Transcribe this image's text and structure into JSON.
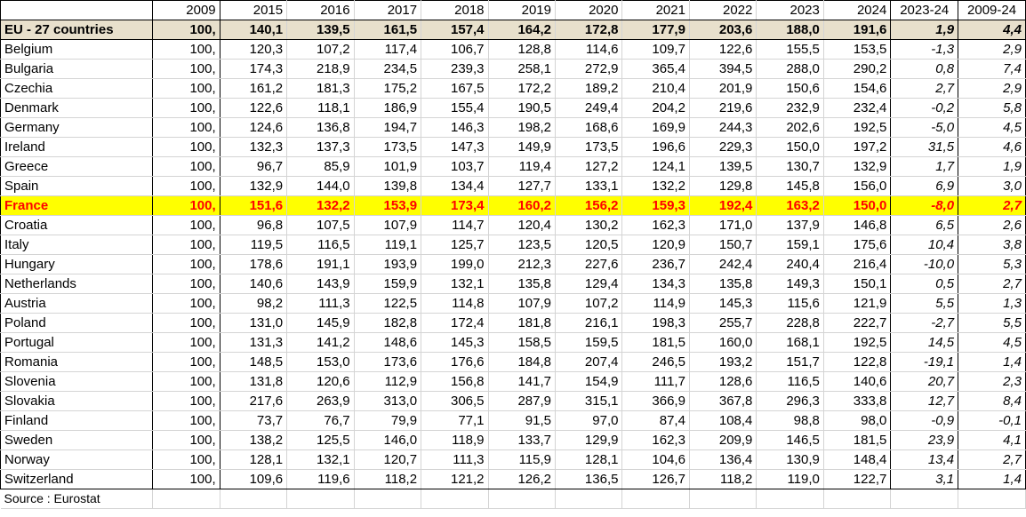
{
  "header": {
    "name": "",
    "years": [
      "2009",
      "2015",
      "2016",
      "2017",
      "2018",
      "2019",
      "2020",
      "2021",
      "2022",
      "2023",
      "2024"
    ],
    "chg_short": "2023-24",
    "chg_long": "2009-24"
  },
  "rows": [
    {
      "name": "EU - 27 countries",
      "values": [
        "100,",
        "140,1",
        "139,5",
        "161,5",
        "157,4",
        "164,2",
        "172,8",
        "177,9",
        "203,6",
        "188,0",
        "191,6"
      ],
      "chg_short": "1,9",
      "chg_long": "4,4"
    },
    {
      "name": "Belgium",
      "values": [
        "100,",
        "120,3",
        "107,2",
        "117,4",
        "106,7",
        "128,8",
        "114,6",
        "109,7",
        "122,6",
        "155,5",
        "153,5"
      ],
      "chg_short": "-1,3",
      "chg_long": "2,9"
    },
    {
      "name": "Bulgaria",
      "values": [
        "100,",
        "174,3",
        "218,9",
        "234,5",
        "239,3",
        "258,1",
        "272,9",
        "365,4",
        "394,5",
        "288,0",
        "290,2"
      ],
      "chg_short": "0,8",
      "chg_long": "7,4"
    },
    {
      "name": "Czechia",
      "values": [
        "100,",
        "161,2",
        "181,3",
        "175,2",
        "167,5",
        "172,2",
        "189,2",
        "210,4",
        "201,9",
        "150,6",
        "154,6"
      ],
      "chg_short": "2,7",
      "chg_long": "2,9"
    },
    {
      "name": "Denmark",
      "values": [
        "100,",
        "122,6",
        "118,1",
        "186,9",
        "155,4",
        "190,5",
        "249,4",
        "204,2",
        "219,6",
        "232,9",
        "232,4"
      ],
      "chg_short": "-0,2",
      "chg_long": "5,8"
    },
    {
      "name": "Germany",
      "values": [
        "100,",
        "124,6",
        "136,8",
        "194,7",
        "146,3",
        "198,2",
        "168,6",
        "169,9",
        "244,3",
        "202,6",
        "192,5"
      ],
      "chg_short": "-5,0",
      "chg_long": "4,5"
    },
    {
      "name": "Ireland",
      "values": [
        "100,",
        "132,3",
        "137,3",
        "173,5",
        "147,3",
        "149,9",
        "173,5",
        "196,6",
        "229,3",
        "150,0",
        "197,2"
      ],
      "chg_short": "31,5",
      "chg_long": "4,6"
    },
    {
      "name": "Greece",
      "values": [
        "100,",
        "96,7",
        "85,9",
        "101,9",
        "103,7",
        "119,4",
        "127,2",
        "124,1",
        "139,5",
        "130,7",
        "132,9"
      ],
      "chg_short": "1,7",
      "chg_long": "1,9"
    },
    {
      "name": "Spain",
      "values": [
        "100,",
        "132,9",
        "144,0",
        "139,8",
        "134,4",
        "127,7",
        "133,1",
        "132,2",
        "129,8",
        "145,8",
        "156,0"
      ],
      "chg_short": "6,9",
      "chg_long": "3,0"
    },
    {
      "name": "France",
      "values": [
        "100,",
        "151,6",
        "132,2",
        "153,9",
        "173,4",
        "160,2",
        "156,2",
        "159,3",
        "192,4",
        "163,2",
        "150,0"
      ],
      "chg_short": "-8,0",
      "chg_long": "2,7"
    },
    {
      "name": "Croatia",
      "values": [
        "100,",
        "96,8",
        "107,5",
        "107,9",
        "114,7",
        "120,4",
        "130,2",
        "162,3",
        "171,0",
        "137,9",
        "146,8"
      ],
      "chg_short": "6,5",
      "chg_long": "2,6"
    },
    {
      "name": "Italy",
      "values": [
        "100,",
        "119,5",
        "116,5",
        "119,1",
        "125,7",
        "123,5",
        "120,5",
        "120,9",
        "150,7",
        "159,1",
        "175,6"
      ],
      "chg_short": "10,4",
      "chg_long": "3,8"
    },
    {
      "name": "Hungary",
      "values": [
        "100,",
        "178,6",
        "191,1",
        "193,9",
        "199,0",
        "212,3",
        "227,6",
        "236,7",
        "242,4",
        "240,4",
        "216,4"
      ],
      "chg_short": "-10,0",
      "chg_long": "5,3"
    },
    {
      "name": "Netherlands",
      "values": [
        "100,",
        "140,6",
        "143,9",
        "159,9",
        "132,1",
        "135,8",
        "129,4",
        "134,3",
        "135,8",
        "149,3",
        "150,1"
      ],
      "chg_short": "0,5",
      "chg_long": "2,7"
    },
    {
      "name": "Austria",
      "values": [
        "100,",
        "98,2",
        "111,3",
        "122,5",
        "114,8",
        "107,9",
        "107,2",
        "114,9",
        "145,3",
        "115,6",
        "121,9"
      ],
      "chg_short": "5,5",
      "chg_long": "1,3"
    },
    {
      "name": "Poland",
      "values": [
        "100,",
        "131,0",
        "145,9",
        "182,8",
        "172,4",
        "181,8",
        "216,1",
        "198,3",
        "255,7",
        "228,8",
        "222,7"
      ],
      "chg_short": "-2,7",
      "chg_long": "5,5"
    },
    {
      "name": "Portugal",
      "values": [
        "100,",
        "131,3",
        "141,2",
        "148,6",
        "145,3",
        "158,5",
        "159,5",
        "181,5",
        "160,0",
        "168,1",
        "192,5"
      ],
      "chg_short": "14,5",
      "chg_long": "4,5"
    },
    {
      "name": "Romania",
      "values": [
        "100,",
        "148,5",
        "153,0",
        "173,6",
        "176,6",
        "184,8",
        "207,4",
        "246,5",
        "193,2",
        "151,7",
        "122,8"
      ],
      "chg_short": "-19,1",
      "chg_long": "1,4"
    },
    {
      "name": "Slovenia",
      "values": [
        "100,",
        "131,8",
        "120,6",
        "112,9",
        "156,8",
        "141,7",
        "154,9",
        "111,7",
        "128,6",
        "116,5",
        "140,6"
      ],
      "chg_short": "20,7",
      "chg_long": "2,3"
    },
    {
      "name": "Slovakia",
      "values": [
        "100,",
        "217,6",
        "263,9",
        "313,0",
        "306,5",
        "287,9",
        "315,1",
        "366,9",
        "367,8",
        "296,3",
        "333,8"
      ],
      "chg_short": "12,7",
      "chg_long": "8,4"
    },
    {
      "name": "Finland",
      "values": [
        "100,",
        "73,7",
        "76,7",
        "79,9",
        "77,1",
        "91,5",
        "97,0",
        "87,4",
        "108,4",
        "98,8",
        "98,0"
      ],
      "chg_short": "-0,9",
      "chg_long": "-0,1"
    },
    {
      "name": "Sweden",
      "values": [
        "100,",
        "138,2",
        "125,5",
        "146,0",
        "118,9",
        "133,7",
        "129,9",
        "162,3",
        "209,9",
        "146,5",
        "181,5"
      ],
      "chg_short": "23,9",
      "chg_long": "4,1"
    },
    {
      "name": "Norway",
      "values": [
        "100,",
        "128,1",
        "132,1",
        "120,7",
        "111,3",
        "115,9",
        "128,1",
        "104,6",
        "136,4",
        "130,9",
        "148,4"
      ],
      "chg_short": "13,4",
      "chg_long": "2,7"
    },
    {
      "name": "Switzerland",
      "values": [
        "100,",
        "109,6",
        "119,6",
        "118,2",
        "121,2",
        "126,2",
        "136,5",
        "126,7",
        "118,2",
        "119,0",
        "122,7"
      ],
      "chg_short": "3,1",
      "chg_long": "1,4"
    }
  ],
  "source": "Source : Eurostat",
  "colors": {
    "eu_row_bg": "#e8e0cc",
    "highlight_bg": "#ffff00",
    "highlight_text": "#ff0000",
    "gridline": "#d4d4d4"
  },
  "highlight_row": "France",
  "total_row": "EU - 27 countries"
}
